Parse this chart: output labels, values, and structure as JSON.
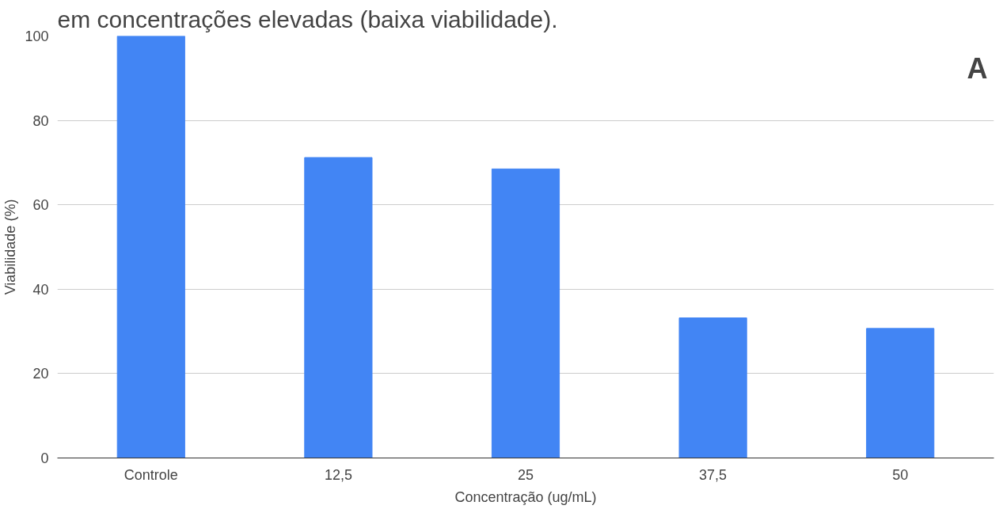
{
  "chart_data": {
    "type": "bar",
    "title": "em concentrações elevadas (baixa viabilidade).",
    "xlabel": "Concentração (ug/mL)",
    "ylabel": "Viabilidade (%)",
    "categories": [
      "Controle",
      "12,5",
      "25",
      "37,5",
      "50"
    ],
    "values": [
      100,
      71.2,
      68.5,
      33.2,
      30.7
    ],
    "color": "#4285f4",
    "ylim": [
      0,
      100
    ],
    "yticks": [
      0,
      20,
      40,
      60,
      80,
      100
    ],
    "grid": "y",
    "annotations": [
      "A"
    ]
  }
}
